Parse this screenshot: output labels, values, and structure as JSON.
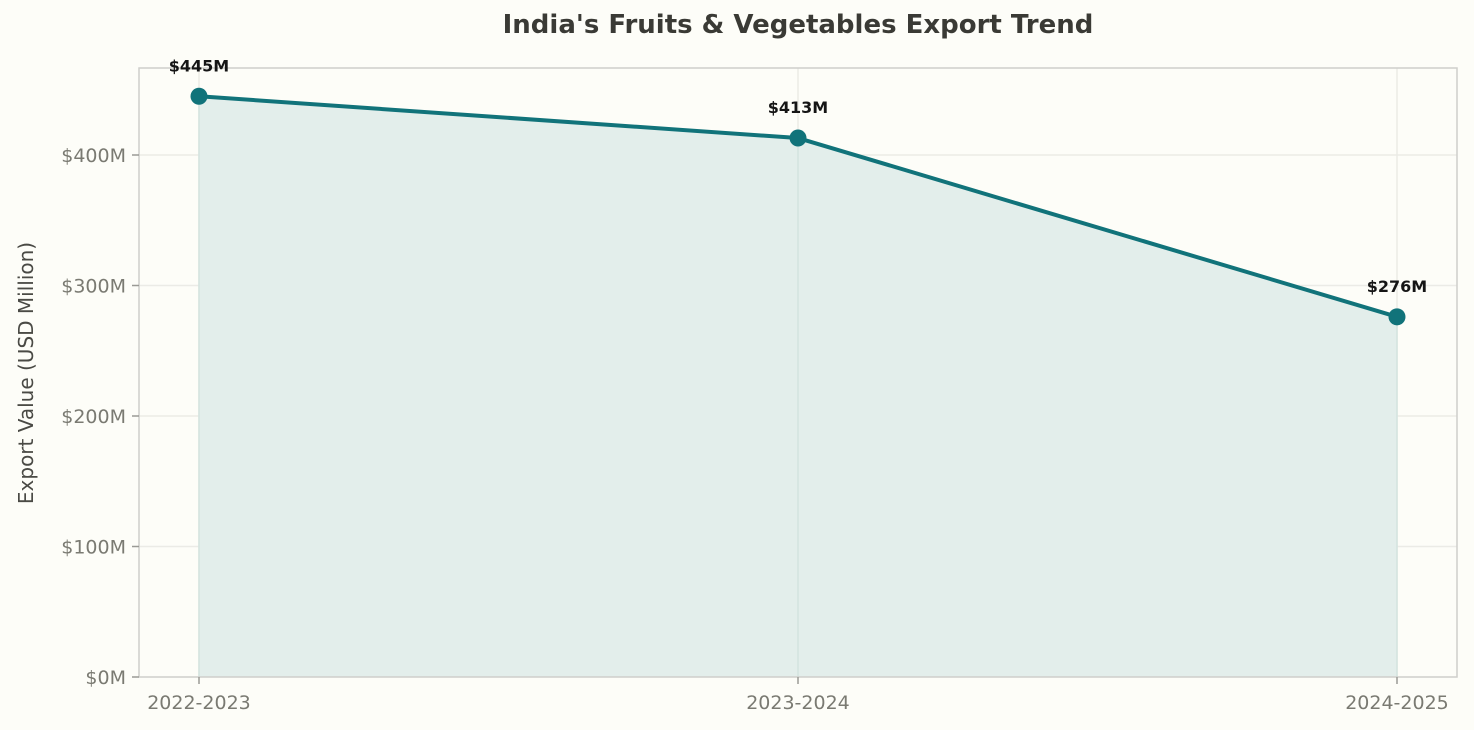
{
  "chart_data": {
    "type": "area",
    "title": "India's Fruits & Vegetables Export Trend",
    "xlabel": "",
    "ylabel": "Export Value (USD Million)",
    "categories": [
      "2022-2023",
      "2023-2024",
      "2024-2025"
    ],
    "series": [
      {
        "name": "Export Value",
        "values": [
          445,
          413,
          276
        ],
        "color": "#11737a",
        "fill": "#e3eeeb"
      }
    ],
    "data_labels": [
      "$445M",
      "$413M",
      "$276M"
    ],
    "ylim": [
      0,
      466
    ],
    "yticks": [
      0,
      100,
      200,
      300,
      400
    ],
    "ytick_labels": [
      "$0M",
      "$100M",
      "$200M",
      "$300M",
      "$400M"
    ],
    "grid": true,
    "legend": null
  }
}
